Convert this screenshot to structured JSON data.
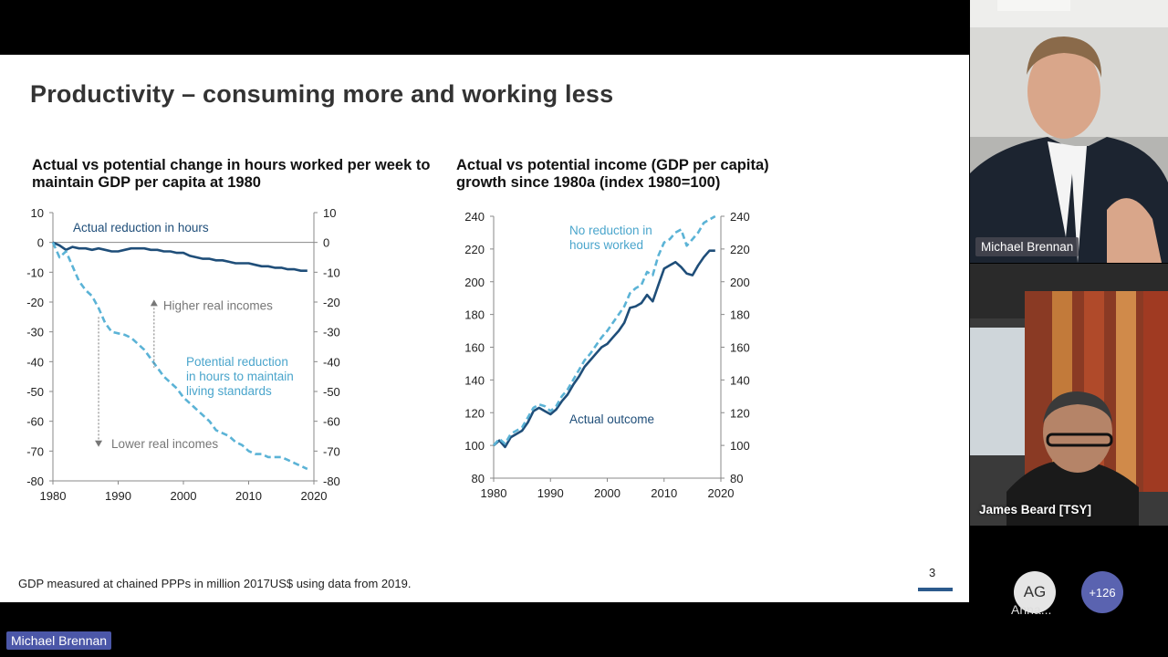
{
  "slide": {
    "title": "Productivity – consuming more and working less",
    "footnote": "GDP measured at chained PPPs in million 2017US$ using data from 2019.",
    "page_number": "3"
  },
  "chart_data": [
    {
      "type": "line",
      "title": "Actual vs potential change in hours worked per week to maintain GDP per capita at 1980",
      "xlim": [
        1980,
        2020
      ],
      "ylim": [
        -80,
        10
      ],
      "x_ticks": [
        1980,
        1990,
        2000,
        2010,
        2020
      ],
      "y_ticks": [
        10,
        0,
        -10,
        -20,
        -30,
        -40,
        -50,
        -60,
        -70,
        -80
      ],
      "series": [
        {
          "name": "Actual reduction in  hours",
          "style": "solid",
          "color": "#1f4e79",
          "x": [
            1980,
            1981,
            1982,
            1983,
            1984,
            1985,
            1986,
            1987,
            1988,
            1989,
            1990,
            1991,
            1992,
            1993,
            1994,
            1995,
            1996,
            1997,
            1998,
            1999,
            2000,
            2001,
            2002,
            2003,
            2004,
            2005,
            2006,
            2007,
            2008,
            2009,
            2010,
            2011,
            2012,
            2013,
            2014,
            2015,
            2016,
            2017,
            2018,
            2019
          ],
          "y": [
            0,
            -1,
            -2.5,
            -1.5,
            -2,
            -2,
            -2.5,
            -2,
            -2.5,
            -3,
            -3,
            -2.5,
            -2,
            -2,
            -2,
            -2.5,
            -2.5,
            -3,
            -3,
            -3.5,
            -3.5,
            -4.5,
            -5,
            -5.5,
            -5.5,
            -6,
            -6,
            -6.5,
            -7,
            -7,
            -7,
            -7.5,
            -8,
            -8,
            -8.5,
            -8.5,
            -9,
            -9,
            -9.5,
            -9.5
          ]
        },
        {
          "name": "Potential reduction in hours to maintain living standards",
          "style": "dashed",
          "color": "#5bb3d6",
          "x": [
            1980,
            1981,
            1982,
            1983,
            1984,
            1985,
            1986,
            1987,
            1988,
            1989,
            1990,
            1991,
            1992,
            1993,
            1994,
            1995,
            1996,
            1997,
            1998,
            1999,
            2000,
            2001,
            2002,
            2003,
            2004,
            2005,
            2006,
            2007,
            2008,
            2009,
            2010,
            2011,
            2012,
            2013,
            2014,
            2015,
            2016,
            2017,
            2018,
            2019
          ],
          "y": [
            0,
            -5,
            -3,
            -8,
            -13,
            -16,
            -18,
            -22,
            -27,
            -30,
            -30.5,
            -31,
            -32,
            -34,
            -36,
            -39,
            -42,
            -45,
            -47,
            -49,
            -52,
            -54,
            -56,
            -58,
            -60,
            -63,
            -64,
            -65,
            -67,
            -68,
            -70,
            -71,
            -71,
            -72,
            -72,
            -72,
            -73,
            -74,
            -75,
            -76
          ]
        }
      ],
      "annotations": {
        "higher": "Higher real incomes",
        "lower": "Lower real incomes",
        "actual_label": "Actual reduction in  hours",
        "potential_label": "Potential reduction in hours to maintain living standards"
      }
    },
    {
      "type": "line",
      "title": "Actual vs potential income (GDP per capita) growth since 1980a (index 1980=100)",
      "xlim": [
        1980,
        2020
      ],
      "ylim": [
        80,
        240
      ],
      "x_ticks": [
        1980,
        1990,
        2000,
        2010,
        2020
      ],
      "y_ticks": [
        240,
        220,
        200,
        180,
        160,
        140,
        120,
        100,
        80
      ],
      "series": [
        {
          "name": "Actual outcome",
          "style": "solid",
          "color": "#1f4e79",
          "x": [
            1980,
            1981,
            1982,
            1983,
            1984,
            1985,
            1986,
            1987,
            1988,
            1989,
            1990,
            1991,
            1992,
            1993,
            1994,
            1995,
            1996,
            1997,
            1998,
            1999,
            2000,
            2001,
            2002,
            2003,
            2004,
            2005,
            2006,
            2007,
            2008,
            2009,
            2010,
            2011,
            2012,
            2013,
            2014,
            2015,
            2016,
            2017,
            2018,
            2019
          ],
          "y": [
            100,
            103,
            99,
            105,
            107,
            109,
            114,
            121,
            123,
            121,
            119,
            122,
            127,
            131,
            137,
            142,
            148,
            152,
            156,
            160,
            162,
            166,
            170,
            175,
            184,
            185,
            187,
            192,
            188,
            198,
            208,
            210,
            212,
            209,
            205,
            204,
            210,
            215,
            219,
            219
          ]
        },
        {
          "name": "No reduction in hours worked",
          "style": "dashed",
          "color": "#5bb3d6",
          "x": [
            1980,
            1981,
            1982,
            1983,
            1984,
            1985,
            1986,
            1987,
            1988,
            1989,
            1990,
            1991,
            1992,
            1993,
            1994,
            1995,
            1996,
            1997,
            1998,
            1999,
            2000,
            2001,
            2002,
            2003,
            2004,
            2005,
            2006,
            2007,
            2008,
            2009,
            2010,
            2011,
            2012,
            2013,
            2014,
            2015,
            2016,
            2017,
            2018,
            2019
          ],
          "y": [
            100,
            104,
            101,
            107,
            109,
            111,
            117,
            123,
            125,
            124,
            121,
            124,
            130,
            134,
            140,
            146,
            152,
            156,
            161,
            166,
            170,
            175,
            180,
            185,
            193,
            196,
            198,
            206,
            204,
            216,
            224,
            226,
            230,
            232,
            222,
            226,
            230,
            236,
            238,
            240
          ]
        }
      ],
      "annotations": {
        "potential_label": "No reduction in hours worked",
        "actual_label": "Actual outcome"
      }
    }
  ],
  "participants": {
    "main_speaker": "Michael Brennan",
    "tile1_name": "Michael Brennan",
    "tile2_name": "James Beard [TSY]",
    "avatar_initials": "AG",
    "avatar_name": "Anna...",
    "more_count": "+126"
  },
  "colors": {
    "actual": "#1f4e79",
    "potential": "#5bb3d6",
    "accent": "#2c5a8c"
  }
}
